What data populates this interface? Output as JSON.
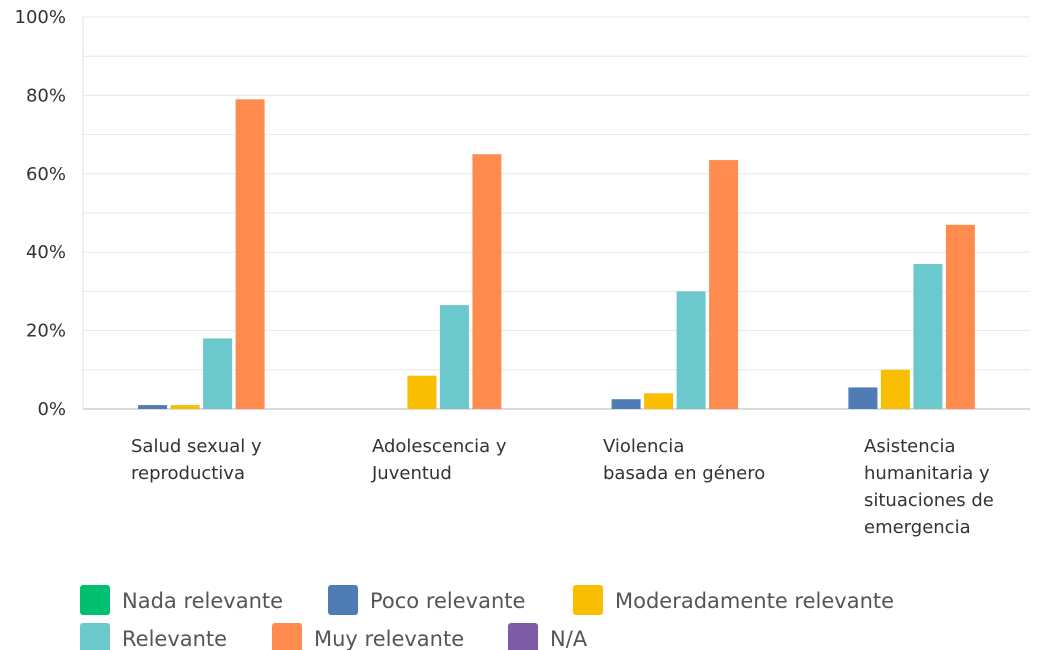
{
  "chart_data": {
    "type": "bar",
    "categories": [
      "Salud sexual y reproductiva",
      "Adolescencia y Juventud",
      "Violencia basada en género",
      "Asistencia humanitaria y situaciones de emergencia"
    ],
    "category_label_lines": [
      [
        "Salud sexual y",
        "reproductiva"
      ],
      [
        "Adolescencia y",
        "Juventud"
      ],
      [
        "Violencia",
        "basada en género"
      ],
      [
        "Asistencia",
        "humanitaria y",
        "situaciones de",
        "emergencia"
      ]
    ],
    "series": [
      {
        "name": "Nada relevante",
        "color": "#00bf6f",
        "values": [
          0,
          0,
          0,
          0
        ]
      },
      {
        "name": "Poco relevante",
        "color": "#507cb6",
        "values": [
          1,
          0,
          2.5,
          5.5
        ]
      },
      {
        "name": "Moderadamente relevante",
        "color": "#f9be00",
        "values": [
          1,
          8.5,
          4,
          10
        ]
      },
      {
        "name": "Relevante",
        "color": "#6bc8cd",
        "values": [
          18,
          26.5,
          30,
          37
        ]
      },
      {
        "name": "Muy relevante",
        "color": "#ff8b4f",
        "values": [
          79,
          65,
          63.5,
          47
        ]
      },
      {
        "name": "N/A",
        "color": "#7d5ba6",
        "values": [
          0,
          0,
          0,
          0
        ]
      }
    ],
    "ylim": [
      0,
      100
    ],
    "yticks": [
      "0%",
      "20%",
      "40%",
      "60%",
      "80%",
      "100%"
    ],
    "ytick_values": [
      0,
      20,
      40,
      60,
      80,
      100
    ],
    "grid": true,
    "legend_placement": "bottom"
  }
}
